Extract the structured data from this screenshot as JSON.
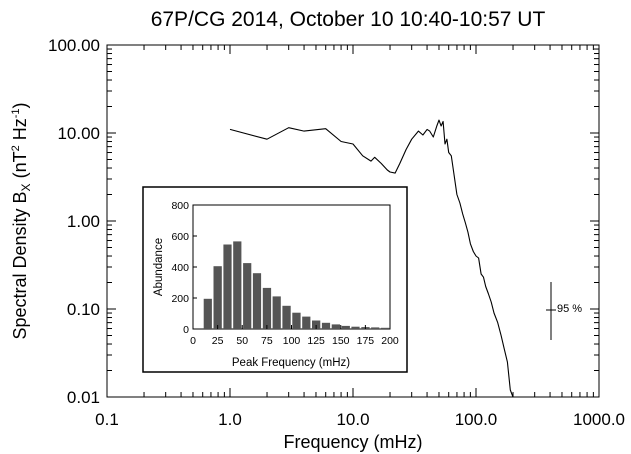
{
  "chart_data": [
    {
      "type": "line",
      "title": "67P/CG 2014, October 10 10:40-10:57 UT",
      "xlabel": "Frequency (mHz)",
      "ylabel": {
        "base": "Spectral Density B",
        "sub": "X",
        "open": " (nT",
        "sup1": "2",
        "mid": " Hz",
        "sup2": "-1",
        "close": ")"
      },
      "xscale": "log",
      "yscale": "log",
      "xlim": [
        0.1,
        1000.0
      ],
      "ylim": [
        0.01,
        100.0
      ],
      "xtick_labels": [
        "0.1",
        "1.0",
        "10.0",
        "100.0",
        "1000.0"
      ],
      "ytick_labels": [
        "0.01",
        "0.10",
        "1.00",
        "10.00",
        "100.00"
      ],
      "line_color": "#000000",
      "x": [
        1.0,
        2.0,
        3.0,
        4.0,
        6.0,
        8.0,
        10.0,
        12.0,
        14.0,
        15.0,
        17.0,
        19.0,
        20.0,
        22.0,
        24.0,
        27.0,
        30.0,
        34.0,
        37.0,
        40.0,
        42.0,
        45.0,
        48.0,
        50.0,
        52.0,
        54.0,
        56.0,
        58.0,
        60.0,
        63.0,
        66.0,
        70.0,
        74.0,
        78.0,
        82.0,
        86.0,
        90.0,
        95.0,
        100.0,
        105.0,
        110.0,
        115.0,
        120.0,
        126.0,
        133.0,
        140.0,
        150.0,
        160.0,
        170.0,
        180.0,
        190.0,
        200.0
      ],
      "y": [
        11.0,
        8.5,
        11.5,
        10.5,
        11.2,
        8.0,
        7.5,
        5.5,
        4.8,
        5.3,
        4.5,
        3.8,
        3.6,
        3.5,
        4.5,
        6.5,
        8.5,
        10.5,
        9.5,
        11.0,
        10.5,
        9.0,
        12.0,
        14.0,
        12.0,
        13.5,
        7.5,
        8.5,
        6.0,
        5.5,
        3.5,
        2.0,
        1.6,
        1.2,
        0.95,
        0.75,
        0.55,
        0.45,
        0.4,
        0.38,
        0.25,
        0.23,
        0.18,
        0.15,
        0.12,
        0.09,
        0.07,
        0.05,
        0.035,
        0.025,
        0.012,
        0.009
      ],
      "error_bar": {
        "label": "95 %"
      }
    },
    {
      "type": "bar",
      "xlabel": "Peak Frequency (mHz)",
      "ylabel": "Abundance",
      "xlim": [
        0,
        200
      ],
      "ylim": [
        0,
        800
      ],
      "xtick_labels": [
        "0",
        "25",
        "50",
        "75",
        "100",
        "125",
        "150",
        "175",
        "200"
      ],
      "ytick_labels": [
        "0",
        "200",
        "400",
        "600",
        "800"
      ],
      "bar_color": "#555555",
      "bin_centers": [
        15,
        25,
        35,
        45,
        55,
        65,
        75,
        85,
        95,
        105,
        115,
        125,
        135,
        145,
        155,
        165,
        175,
        185,
        195
      ],
      "values": [
        195,
        405,
        545,
        565,
        425,
        360,
        265,
        210,
        150,
        105,
        80,
        55,
        40,
        30,
        20,
        15,
        12,
        10,
        8
      ]
    }
  ]
}
